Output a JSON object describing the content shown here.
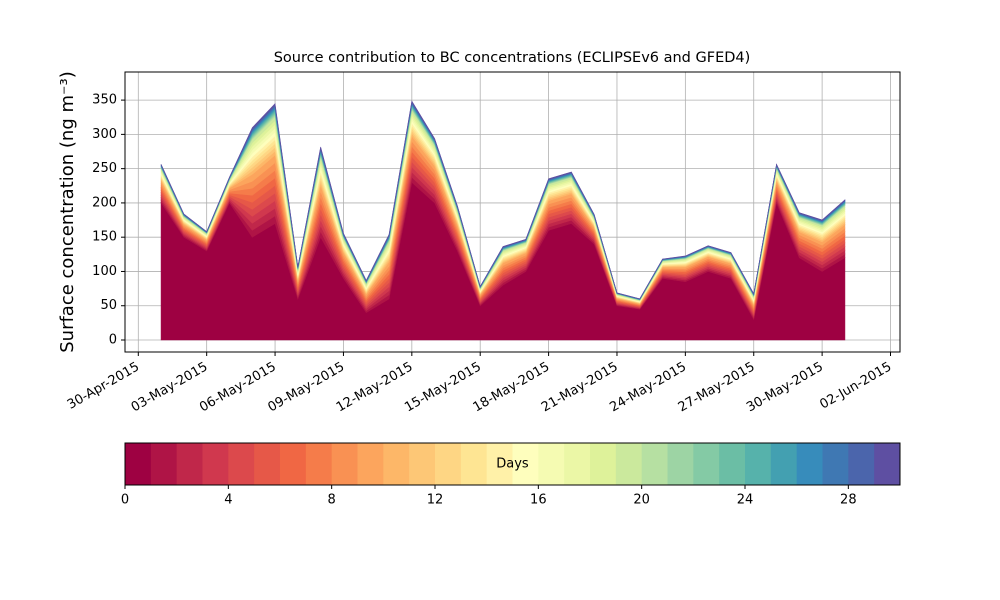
{
  "chart_data": {
    "type": "stacked_area",
    "title": "Source contribution to BC concentrations (ECLIPSEv6 and GFED4)",
    "y_label": "Surface concentration (ng m⁻³)",
    "x": [
      "2015-05-01",
      "2015-05-02",
      "2015-05-03",
      "2015-05-04",
      "2015-05-05",
      "2015-05-06",
      "2015-05-07",
      "2015-05-08",
      "2015-05-09",
      "2015-05-10",
      "2015-05-11",
      "2015-05-12",
      "2015-05-13",
      "2015-05-14",
      "2015-05-15",
      "2015-05-16",
      "2015-05-17",
      "2015-05-18",
      "2015-05-19",
      "2015-05-20",
      "2015-05-21",
      "2015-05-22",
      "2015-05-23",
      "2015-05-24",
      "2015-05-25",
      "2015-05-26",
      "2015-05-27",
      "2015-05-28",
      "2015-05-29",
      "2015-05-30",
      "2015-05-31"
    ],
    "xlim": [
      "2015-04-29T10:00",
      "2015-06-02T10:00"
    ],
    "xticks": [
      {
        "value": "2015-04-30",
        "label": "30-Apr-2015"
      },
      {
        "value": "2015-05-03",
        "label": "03-May-2015"
      },
      {
        "value": "2015-05-06",
        "label": "06-May-2015"
      },
      {
        "value": "2015-05-09",
        "label": "09-May-2015"
      },
      {
        "value": "2015-05-12",
        "label": "12-May-2015"
      },
      {
        "value": "2015-05-15",
        "label": "15-May-2015"
      },
      {
        "value": "2015-05-18",
        "label": "18-May-2015"
      },
      {
        "value": "2015-05-21",
        "label": "21-May-2015"
      },
      {
        "value": "2015-05-24",
        "label": "24-May-2015"
      },
      {
        "value": "2015-05-27",
        "label": "27-May-2015"
      },
      {
        "value": "2015-05-30",
        "label": "30-May-2015"
      },
      {
        "value": "2015-06-02",
        "label": "02-Jun-2015"
      }
    ],
    "ylim": [
      -17.5,
      391
    ],
    "yticks": [
      0,
      50,
      100,
      150,
      200,
      250,
      300,
      350
    ],
    "grid": true,
    "colorbar": {
      "label": "Days",
      "lim": [
        0,
        30
      ],
      "ticks": [
        0,
        4,
        8,
        12,
        16,
        20,
        24,
        28
      ]
    },
    "series": [
      {
        "color": "#9e0142",
        "values": [
          200,
          150,
          130,
          200,
          150,
          170,
          60,
          150,
          90,
          40,
          60,
          230,
          200,
          130,
          50,
          80,
          100,
          160,
          170,
          140,
          50,
          45,
          90,
          85,
          100,
          90,
          30,
          200,
          120,
          100,
          120
        ]
      },
      {
        "color": "#af1446",
        "values": [
          3.6,
          2.1,
          1.8,
          2.4,
          10.2,
          11.1,
          3,
          8.4,
          4.2,
          3,
          6,
          7.5,
          6,
          4.2,
          1.8,
          3.6,
          3,
          4.8,
          4.8,
          2.7,
          1.2,
          0.9,
          1.8,
          2.4,
          2.4,
          2.4,
          2.4,
          3.6,
          4.2,
          4.8,
          5.4
        ]
      },
      {
        "color": "#c0274a",
        "values": [
          3.6,
          2.1,
          1.8,
          2.4,
          10.2,
          11.1,
          3,
          8.4,
          4.2,
          3,
          6,
          7.5,
          6,
          4.2,
          1.8,
          3.6,
          3,
          4.8,
          4.8,
          2.7,
          1.2,
          0.9,
          1.8,
          2.4,
          2.4,
          2.4,
          2.4,
          3.6,
          4.2,
          4.8,
          5.4
        ]
      },
      {
        "color": "#d0384e",
        "values": [
          3.6,
          2.1,
          1.8,
          2.4,
          10.2,
          11.1,
          3,
          8.4,
          4.2,
          3,
          6,
          7.5,
          6,
          4.2,
          1.8,
          3.6,
          3,
          4.8,
          4.8,
          2.7,
          1.2,
          0.9,
          1.8,
          2.4,
          2.4,
          2.4,
          2.4,
          3.6,
          4.2,
          4.8,
          5.4
        ]
      },
      {
        "color": "#dc494c",
        "values": [
          3.6,
          2.1,
          1.8,
          2.4,
          10.2,
          11.1,
          3,
          8.4,
          4.2,
          3,
          6,
          7.5,
          6,
          4.2,
          1.8,
          3.6,
          3,
          4.8,
          4.8,
          2.7,
          1.2,
          0.9,
          1.8,
          2.4,
          2.4,
          2.4,
          2.4,
          3.6,
          4.2,
          4.8,
          5.4
        ]
      },
      {
        "color": "#e65848",
        "values": [
          3.6,
          2.1,
          1.8,
          2.4,
          10.2,
          11.1,
          3,
          8.4,
          4.2,
          3,
          6,
          7.5,
          6,
          4.2,
          1.8,
          3.6,
          3,
          4.8,
          4.8,
          2.7,
          1.2,
          0.9,
          1.8,
          2.4,
          2.4,
          2.4,
          2.4,
          3.6,
          4.2,
          4.8,
          5.4
        ]
      },
      {
        "color": "#f06744",
        "values": [
          3.6,
          2.1,
          1.8,
          2.4,
          10.2,
          11.1,
          3,
          8.4,
          4.2,
          3,
          6,
          7.5,
          6,
          4.2,
          1.8,
          3.6,
          3,
          4.8,
          4.8,
          2.7,
          1.2,
          0.9,
          1.8,
          2.4,
          2.4,
          2.4,
          2.4,
          3.6,
          4.2,
          4.8,
          5.4
        ]
      },
      {
        "color": "#f57c4a",
        "values": [
          3.6,
          2.1,
          1.8,
          2.4,
          10.2,
          11.1,
          3,
          8.4,
          4.2,
          3,
          6,
          7.5,
          6,
          4.2,
          1.8,
          3.6,
          3,
          4.8,
          4.8,
          2.7,
          1.2,
          0.9,
          1.8,
          2.4,
          2.4,
          2.4,
          2.4,
          3.6,
          4.2,
          4.8,
          5.4
        ]
      },
      {
        "color": "#f99153",
        "values": [
          3.6,
          2.1,
          1.8,
          2.4,
          10.2,
          11.1,
          3,
          8.4,
          4.2,
          3,
          6,
          7.5,
          6,
          4.2,
          1.8,
          3.6,
          3,
          4.8,
          4.8,
          2.7,
          1.2,
          0.9,
          1.8,
          2.4,
          2.4,
          2.4,
          2.4,
          3.6,
          4.2,
          4.8,
          5.4
        ]
      },
      {
        "color": "#fca55d",
        "values": [
          3.6,
          2.1,
          1.8,
          2.4,
          10.2,
          11.1,
          3,
          8.4,
          4.2,
          3,
          6,
          7.5,
          6,
          4.2,
          1.8,
          3.6,
          3,
          4.8,
          4.8,
          2.7,
          1.2,
          0.9,
          1.8,
          2.4,
          2.4,
          2.4,
          2.4,
          3.6,
          4.2,
          4.8,
          5.4
        ]
      },
      {
        "color": "#fdb768",
        "values": [
          1.8,
          1.1,
          0.9,
          1.2,
          5.1,
          5.6,
          1.5,
          4.2,
          2.1,
          1.5,
          3,
          3.8,
          3,
          2.1,
          0.9,
          1.8,
          1.5,
          2.4,
          2.4,
          1.4,
          0.6,
          0.5,
          0.9,
          1.2,
          1.2,
          1.2,
          1.2,
          1.8,
          2.1,
          2.4,
          2.7
        ]
      },
      {
        "color": "#fdc776",
        "values": [
          1.8,
          1.1,
          0.9,
          1.2,
          5.1,
          5.6,
          1.5,
          4.2,
          2.1,
          1.5,
          3,
          3.8,
          3,
          2.1,
          0.9,
          1.8,
          1.5,
          2.4,
          2.4,
          1.4,
          0.6,
          0.5,
          0.9,
          1.2,
          1.2,
          1.2,
          1.2,
          1.8,
          2.1,
          2.4,
          2.7
        ]
      },
      {
        "color": "#fed684",
        "values": [
          1.8,
          1.1,
          0.9,
          1.2,
          5.1,
          5.6,
          1.5,
          4.2,
          2.1,
          1.5,
          3,
          3.8,
          3,
          2.1,
          0.9,
          1.8,
          1.5,
          2.4,
          2.4,
          1.4,
          0.6,
          0.5,
          0.9,
          1.2,
          1.2,
          1.2,
          1.2,
          1.8,
          2.1,
          2.4,
          2.7
        ]
      },
      {
        "color": "#fee593",
        "values": [
          1.8,
          1.1,
          0.9,
          1.2,
          5.1,
          5.6,
          1.5,
          4.2,
          2.1,
          1.5,
          3,
          3.8,
          3,
          2.1,
          0.9,
          1.8,
          1.5,
          2.4,
          2.4,
          1.4,
          0.6,
          0.5,
          0.9,
          1.2,
          1.2,
          1.2,
          1.2,
          1.8,
          2.1,
          2.4,
          2.7
        ]
      },
      {
        "color": "#fff1a8",
        "values": [
          1.8,
          1.1,
          0.9,
          1.2,
          5.1,
          5.6,
          1.5,
          4.2,
          2.1,
          1.5,
          3,
          3.8,
          3,
          2.1,
          0.9,
          1.8,
          1.5,
          2.4,
          2.4,
          1.4,
          0.6,
          0.5,
          0.9,
          1.2,
          1.2,
          1.2,
          1.2,
          1.8,
          2.1,
          2.4,
          2.7
        ]
      },
      {
        "color": "#fefebd",
        "values": [
          1.8,
          1.1,
          0.9,
          1.2,
          5.1,
          5.6,
          1.5,
          4.2,
          2.1,
          1.5,
          3,
          3.8,
          3,
          2.1,
          0.9,
          1.8,
          1.5,
          2.4,
          2.4,
          1.4,
          0.6,
          0.5,
          0.9,
          1.2,
          1.2,
          1.2,
          1.2,
          1.8,
          2.1,
          2.4,
          2.7
        ]
      },
      {
        "color": "#f5fbb2",
        "values": [
          1.8,
          1.1,
          0.9,
          1.2,
          5.1,
          5.6,
          1.5,
          4.2,
          2.1,
          1.5,
          3,
          3.8,
          3,
          2.1,
          0.9,
          1.8,
          1.5,
          2.4,
          2.4,
          1.4,
          0.6,
          0.5,
          0.9,
          1.2,
          1.2,
          1.2,
          1.2,
          1.8,
          2.1,
          2.4,
          2.7
        ]
      },
      {
        "color": "#ebf7a6",
        "values": [
          1.8,
          1.1,
          0.9,
          1.2,
          5.1,
          5.6,
          1.5,
          4.2,
          2.1,
          1.5,
          3,
          3.8,
          3,
          2.1,
          0.9,
          1.8,
          1.5,
          2.4,
          2.4,
          1.4,
          0.6,
          0.5,
          0.9,
          1.2,
          1.2,
          1.2,
          1.2,
          1.8,
          2.1,
          2.4,
          2.7
        ]
      },
      {
        "color": "#def29a",
        "values": [
          1.8,
          1.1,
          0.9,
          1.2,
          5.1,
          5.6,
          1.5,
          4.2,
          2.1,
          1.5,
          3,
          3.8,
          3,
          2.1,
          0.9,
          1.8,
          1.5,
          2.4,
          2.4,
          1.4,
          0.6,
          0.5,
          0.9,
          1.2,
          1.2,
          1.2,
          1.2,
          1.8,
          2.1,
          2.4,
          2.7
        ]
      },
      {
        "color": "#cbe99d",
        "values": [
          1.8,
          1.1,
          0.9,
          1.2,
          5.1,
          5.6,
          1.5,
          4.2,
          2.1,
          1.5,
          3,
          3.8,
          3,
          2.1,
          0.9,
          1.8,
          1.5,
          2.4,
          2.4,
          1.4,
          0.6,
          0.5,
          0.9,
          1.2,
          1.2,
          1.2,
          1.2,
          1.8,
          2.1,
          2.4,
          2.7
        ]
      },
      {
        "color": "#b6e0a2",
        "values": [
          0.6,
          0.4,
          0.3,
          0.4,
          1.7,
          1.9,
          0.5,
          1.4,
          0.7,
          0.5,
          1,
          1.3,
          1,
          0.7,
          0.3,
          0.6,
          0.5,
          0.8,
          0.8,
          0.5,
          0.2,
          0.2,
          0.3,
          0.4,
          0.4,
          0.4,
          0.4,
          0.6,
          0.7,
          0.8,
          0.9
        ]
      },
      {
        "color": "#9dd4a4",
        "values": [
          0.6,
          0.4,
          0.3,
          0.4,
          1.7,
          1.9,
          0.5,
          1.4,
          0.7,
          0.5,
          1,
          1.3,
          1,
          0.7,
          0.3,
          0.6,
          0.5,
          0.8,
          0.8,
          0.5,
          0.2,
          0.2,
          0.3,
          0.4,
          0.4,
          0.4,
          0.4,
          0.6,
          0.7,
          0.8,
          0.9
        ]
      },
      {
        "color": "#84caa5",
        "values": [
          0.6,
          0.4,
          0.3,
          0.4,
          1.7,
          1.9,
          0.5,
          1.4,
          0.7,
          0.5,
          1,
          1.3,
          1,
          0.7,
          0.3,
          0.6,
          0.5,
          0.8,
          0.8,
          0.5,
          0.2,
          0.2,
          0.3,
          0.4,
          0.4,
          0.4,
          0.4,
          0.6,
          0.7,
          0.8,
          0.9
        ]
      },
      {
        "color": "#6bbea5",
        "values": [
          0.6,
          0.4,
          0.3,
          0.4,
          1.7,
          1.9,
          0.5,
          1.4,
          0.7,
          0.5,
          1,
          1.3,
          1,
          0.7,
          0.3,
          0.6,
          0.5,
          0.8,
          0.8,
          0.5,
          0.2,
          0.2,
          0.3,
          0.4,
          0.4,
          0.4,
          0.4,
          0.6,
          0.7,
          0.8,
          0.9
        ]
      },
      {
        "color": "#56b2ab",
        "values": [
          0.6,
          0.4,
          0.3,
          0.4,
          1.7,
          1.9,
          0.5,
          1.4,
          0.7,
          0.5,
          1,
          1.3,
          1,
          0.7,
          0.3,
          0.6,
          0.5,
          0.8,
          0.8,
          0.5,
          0.2,
          0.2,
          0.3,
          0.4,
          0.4,
          0.4,
          0.4,
          0.6,
          0.7,
          0.8,
          0.9
        ]
      },
      {
        "color": "#43a0b1",
        "values": [
          0.6,
          0.4,
          0.3,
          0.4,
          1.7,
          1.9,
          0.5,
          1.4,
          0.7,
          0.5,
          1,
          1.3,
          1,
          0.7,
          0.3,
          0.6,
          0.5,
          0.8,
          0.8,
          0.5,
          0.2,
          0.2,
          0.3,
          0.4,
          0.4,
          0.4,
          0.4,
          0.6,
          0.7,
          0.8,
          0.9
        ]
      },
      {
        "color": "#378cbb",
        "values": [
          0.6,
          0.4,
          0.3,
          0.4,
          1.7,
          1.9,
          0.5,
          1.4,
          0.7,
          0.5,
          1,
          1.3,
          1,
          0.7,
          0.3,
          0.6,
          0.5,
          0.8,
          0.8,
          0.5,
          0.2,
          0.2,
          0.3,
          0.4,
          0.4,
          0.4,
          0.4,
          0.6,
          0.7,
          0.8,
          0.9
        ]
      },
      {
        "color": "#3f78b3",
        "values": [
          0.6,
          0.4,
          0.3,
          0.4,
          1.7,
          1.9,
          0.5,
          1.4,
          0.7,
          0.5,
          1,
          1.3,
          1,
          0.7,
          0.3,
          0.6,
          0.5,
          0.8,
          0.8,
          0.5,
          0.2,
          0.2,
          0.3,
          0.4,
          0.4,
          0.4,
          0.4,
          0.6,
          0.7,
          0.8,
          0.9
        ]
      },
      {
        "color": "#4b65ac",
        "values": [
          0.6,
          0.4,
          0.3,
          0.4,
          1.7,
          1.9,
          0.5,
          1.4,
          0.7,
          0.5,
          1,
          1.3,
          1,
          0.7,
          0.3,
          0.6,
          0.5,
          0.8,
          0.8,
          0.5,
          0.2,
          0.2,
          0.3,
          0.4,
          0.4,
          0.4,
          0.4,
          0.6,
          0.7,
          0.8,
          0.9
        ]
      },
      {
        "color": "#5e4fa2",
        "values": [
          0.6,
          0.4,
          0.3,
          0.4,
          1.7,
          1.9,
          0.5,
          1.4,
          0.7,
          0.5,
          1,
          1.3,
          1,
          0.7,
          0.3,
          0.6,
          0.5,
          0.8,
          0.8,
          0.5,
          0.2,
          0.2,
          0.3,
          0.4,
          0.4,
          0.4,
          0.4,
          0.6,
          0.7,
          0.8,
          0.9
        ]
      }
    ]
  }
}
